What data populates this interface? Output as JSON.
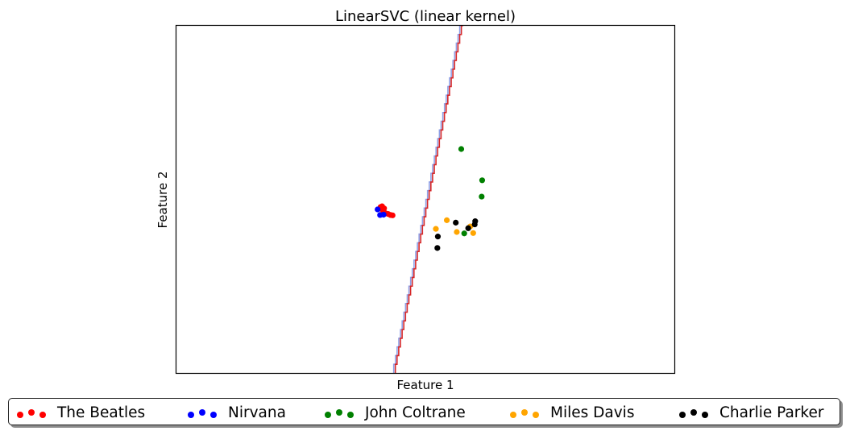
{
  "chart_data": {
    "type": "scatter",
    "title": "LinearSVC (linear kernel)",
    "xlabel": "Feature 1",
    "ylabel": "Feature 2",
    "xlim": [
      0,
      100
    ],
    "ylim": [
      0,
      100
    ],
    "ticks_shown": false,
    "grid": false,
    "legend_position": "bottom",
    "decision_boundary": {
      "description_free": true,
      "points": [
        [
          43.8,
          0
        ],
        [
          57.4,
          100
        ]
      ],
      "colors": [
        "#8fa0e6",
        "#d62728"
      ]
    },
    "series": [
      {
        "name": "The Beatles",
        "color": "#ff0000",
        "points": [
          [
            41.0,
            47.8
          ],
          [
            41.2,
            47.2
          ],
          [
            41.5,
            46.8
          ],
          [
            42.0,
            46.0
          ],
          [
            42.5,
            45.8
          ],
          [
            43.0,
            45.5
          ],
          [
            43.4,
            45.4
          ],
          [
            41.3,
            48.0
          ],
          [
            41.7,
            47.4
          ]
        ]
      },
      {
        "name": "Nirvana",
        "color": "#0000ff",
        "points": [
          [
            40.4,
            47.1
          ],
          [
            40.9,
            45.5
          ],
          [
            41.6,
            45.6
          ]
        ]
      },
      {
        "name": "John Coltrane",
        "color": "#008000",
        "points": [
          [
            57.2,
            64.5
          ],
          [
            61.4,
            55.5
          ],
          [
            61.3,
            50.8
          ],
          [
            57.8,
            40.2
          ]
        ]
      },
      {
        "name": "Miles Davis",
        "color": "#ffa500",
        "points": [
          [
            52.1,
            41.5
          ],
          [
            54.3,
            44.0
          ],
          [
            56.3,
            40.6
          ],
          [
            59.6,
            40.3
          ],
          [
            59.0,
            42.2
          ]
        ]
      },
      {
        "name": "Charlie Parker",
        "color": "#000000",
        "points": [
          [
            52.5,
            39.3
          ],
          [
            52.4,
            36.0
          ],
          [
            56.1,
            43.3
          ],
          [
            58.6,
            41.7
          ],
          [
            60.0,
            43.7
          ],
          [
            59.9,
            42.8
          ]
        ]
      }
    ]
  }
}
